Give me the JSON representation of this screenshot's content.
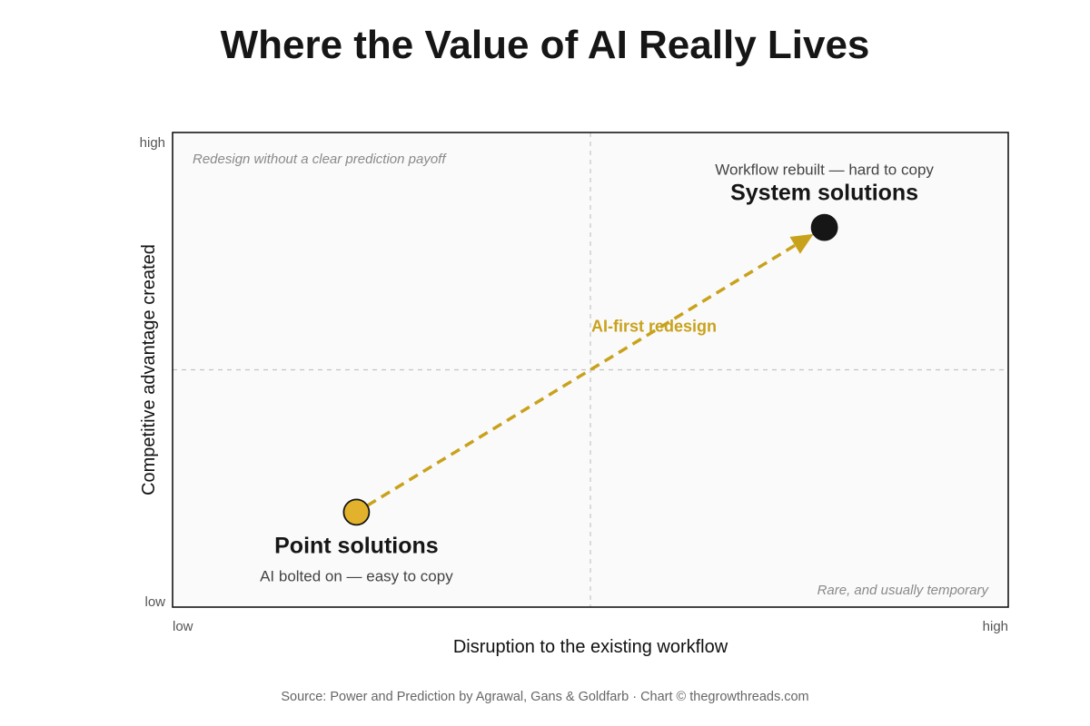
{
  "chart_data": {
    "type": "scatter",
    "title": "Where the Value of AI Really Lives",
    "xlabel": "Disruption to the existing workflow",
    "ylabel": "Competitive advantage created",
    "x_ticks": [
      "low",
      "high"
    ],
    "y_ticks": [
      "low",
      "high"
    ],
    "xlim": [
      0,
      1
    ],
    "ylim": [
      0,
      1
    ],
    "grid": "quadrant dividers at midpoints",
    "quadrant_notes": {
      "top_left": "Redesign without a clear prediction payoff",
      "bottom_right": "Rare, and usually temporary"
    },
    "points": [
      {
        "label": "Point solutions",
        "sublabel": "AI bolted on — easy to copy",
        "x": 0.22,
        "y": 0.2,
        "color": "#e3b22c"
      },
      {
        "label": "System solutions",
        "sublabel": "Workflow rebuilt — hard to copy",
        "x": 0.78,
        "y": 0.8,
        "color": "#161616"
      }
    ],
    "arrow": {
      "from": 0,
      "to": 1,
      "label": "AI-first redesign",
      "color": "#c9a21c"
    },
    "source": "Source: Power and Prediction by Agrawal, Gans & Goldfarb · Chart © thegrowthreads.com"
  }
}
